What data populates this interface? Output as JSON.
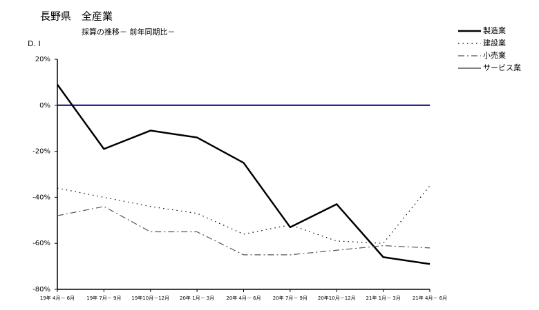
{
  "chart_data": {
    "type": "line",
    "title": "長野県　全産業",
    "subtitle": "採算の推移－ 前年同期比－",
    "y_label": "D. I",
    "categories": [
      "19年 4月－ 6月",
      "19年 7月－ 9月",
      "19年10月－12月",
      "20年 1月－ 3月",
      "20年 4月－ 6月",
      "20年 7月－ 9月",
      "20年10月－12月",
      "21年 1月－ 3月",
      "21年 4月－ 6月"
    ],
    "series": [
      {
        "name": "製造業",
        "color": "#000000",
        "width": 2.5,
        "dash": "none",
        "values": [
          9,
          -19,
          -11,
          -14,
          -25,
          -53,
          -43,
          -66,
          -69
        ]
      },
      {
        "name": "建設業",
        "color": "#000000",
        "width": 1.2,
        "dash": "1.5 5",
        "values": [
          -36,
          -40,
          -44,
          -47,
          -56,
          -52,
          -59,
          -60,
          -35
        ]
      },
      {
        "name": "小売業",
        "color": "#555555",
        "width": 1.2,
        "dash": "9 4 2 4",
        "values": [
          -48,
          -44,
          -55,
          -55,
          -65,
          -65,
          -63,
          -61,
          -62
        ]
      },
      {
        "name": "サービス業",
        "color": "#000000",
        "width": 1,
        "dash": "none",
        "values": [
          null,
          null,
          null,
          null,
          null,
          null,
          null,
          null,
          null
        ]
      }
    ],
    "ylim": [
      -80,
      20
    ],
    "yticks": [
      {
        "value": 20,
        "label": "20%"
      },
      {
        "value": 0,
        "label": "0%"
      },
      {
        "value": -20,
        "label": "-20%"
      },
      {
        "value": -40,
        "label": "-40%"
      },
      {
        "value": -60,
        "label": "-60%"
      },
      {
        "value": -80,
        "label": "-80%"
      }
    ],
    "zero_line_color": "#000080"
  }
}
